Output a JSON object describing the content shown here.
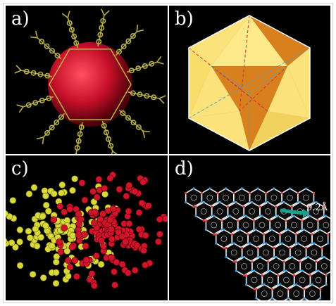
{
  "figure": {
    "panels": [
      {
        "label": "a)",
        "description_icon": "porous-cage-with-red-sphere"
      },
      {
        "label": "b)",
        "description_icon": "icosahedral-polyhedron"
      },
      {
        "label": "c)",
        "description_icon": "space-filling-model-yellow-red"
      },
      {
        "label": "d)",
        "description_icon": "hexagonal-framework-packing"
      }
    ],
    "annotation": "9.2Å"
  },
  "colors": {
    "background": "#000000",
    "framework_yellow": "#b8b04a",
    "sphere_red": "#d01428",
    "poly_yellow": "#fbe27a",
    "poly_orange": "#d9801e",
    "atom_yellow": "#d8d83a",
    "atom_red": "#d0142a",
    "arrow_teal": "#19a28a"
  }
}
